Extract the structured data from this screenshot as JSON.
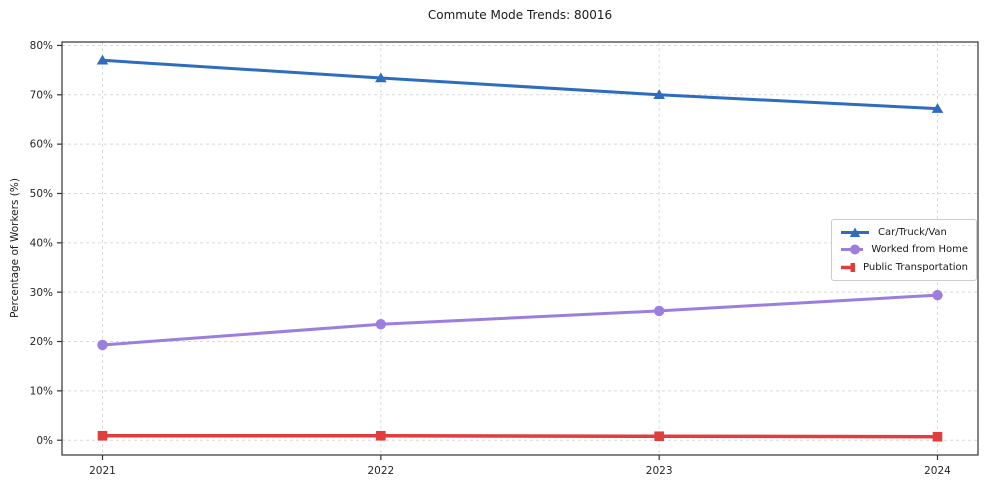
{
  "window": {
    "background": "#ffffff"
  },
  "chart_data": {
    "type": "line",
    "title": "Commute Mode Trends: 80016",
    "xlabel": "",
    "ylabel": "Percentage of Workers (%)",
    "x": [
      2021,
      2022,
      2023,
      2024
    ],
    "x_tick_labels": [
      "2021",
      "2022",
      "2023",
      "2024"
    ],
    "y_ticks": [
      0,
      10,
      20,
      30,
      40,
      50,
      60,
      70,
      80
    ],
    "y_tick_suffix": "%",
    "ylim": [
      -3,
      80.7
    ],
    "grid": true,
    "grid_style": "dashed",
    "legend_position": "right-center",
    "series": [
      {
        "name": "Car/Truck/Van",
        "marker": "triangle",
        "color": "#2d6cbe",
        "line_width": 3,
        "values": [
          77.0,
          73.4,
          70.0,
          67.2
        ]
      },
      {
        "name": "Worked from Home",
        "marker": "circle",
        "color": "#9c7ede",
        "line_width": 3,
        "values": [
          19.3,
          23.5,
          26.2,
          29.4
        ]
      },
      {
        "name": "Public Transportation",
        "marker": "square",
        "color": "#e23d3d",
        "line_width": 3.5,
        "values": [
          0.9,
          0.9,
          0.8,
          0.7
        ]
      }
    ],
    "colors": {
      "gridline": "#d9d9d9",
      "spine": "#333333",
      "tick_text": "#262626",
      "title_text": "#1a1a1a"
    }
  }
}
